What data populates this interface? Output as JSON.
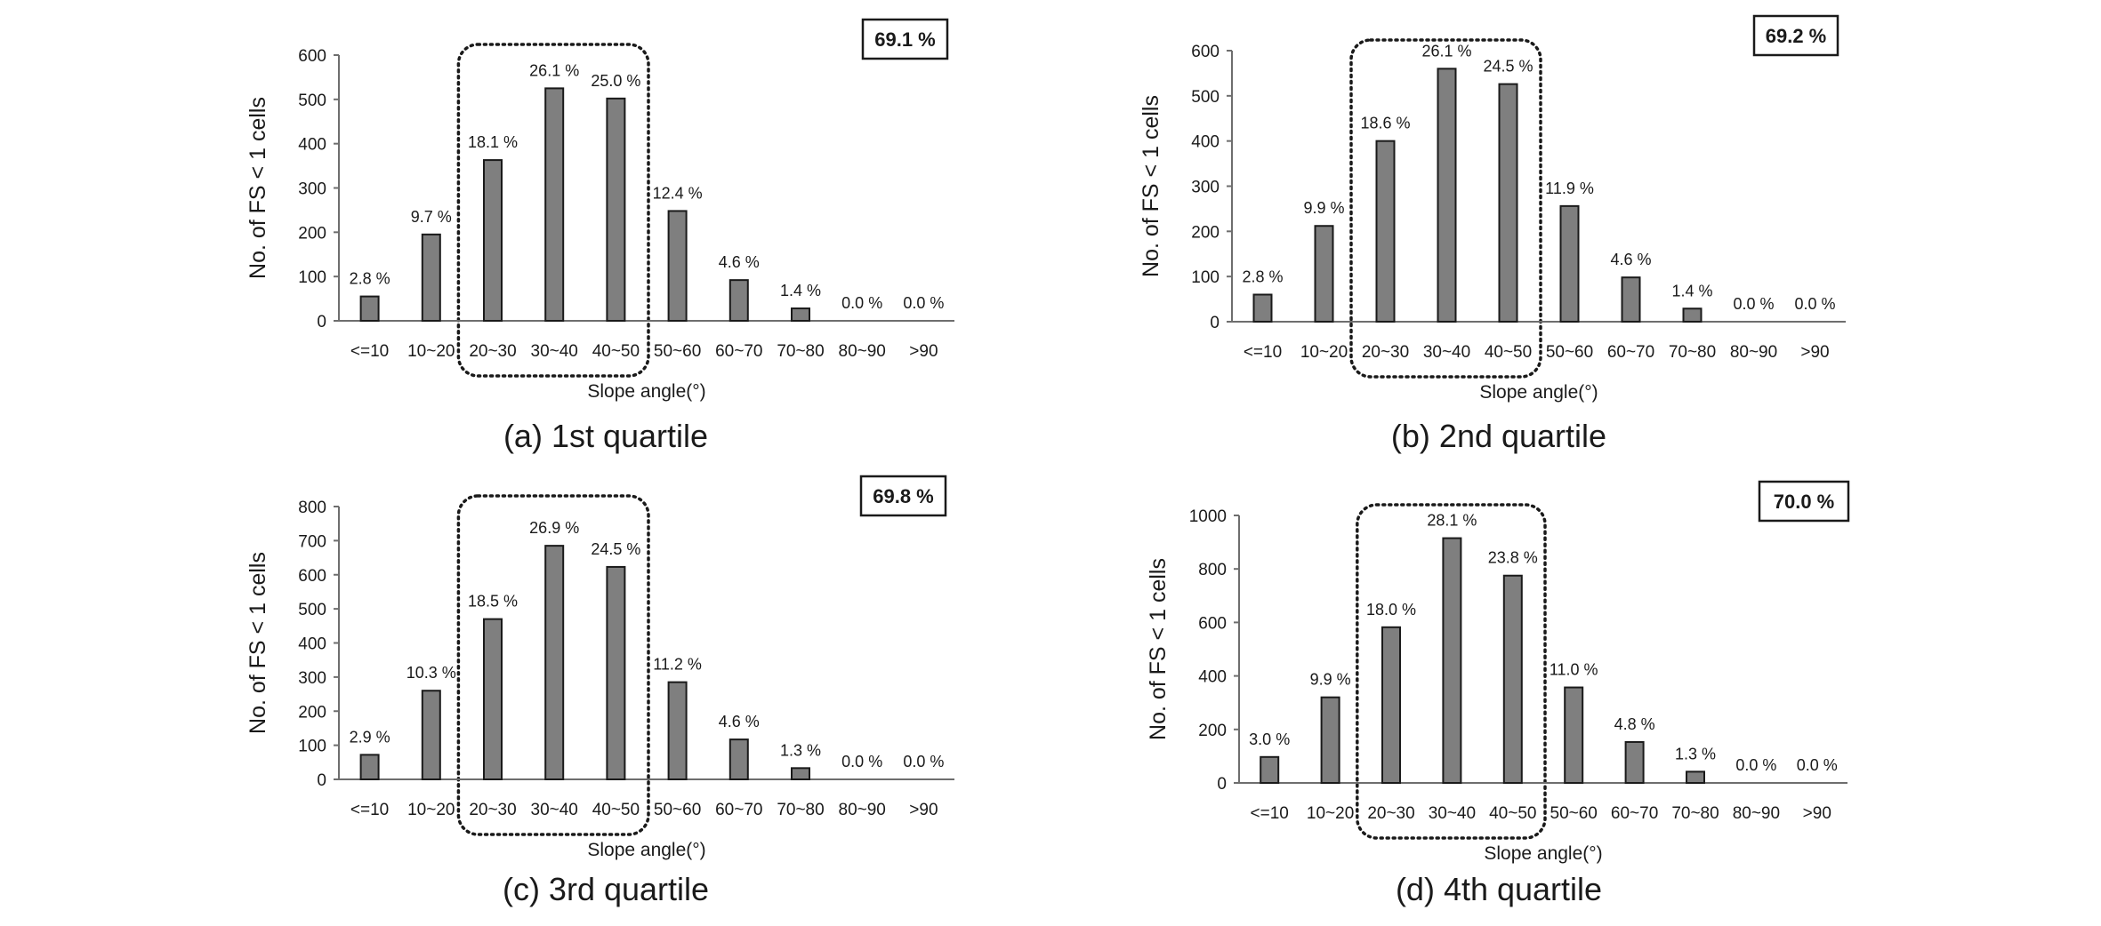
{
  "chart_data": [
    {
      "type": "bar",
      "caption": "(a) 1st quartile",
      "total_label": "69.1 %",
      "ylabel": "No. of FS  <  1 cells",
      "xlabel": "Slope angle(°)",
      "ylim": [
        0,
        600
      ],
      "yticks": [
        0,
        100,
        200,
        300,
        400,
        500,
        600
      ],
      "categories": [
        "<=10",
        "10~20",
        "20~30",
        "30~40",
        "40~50",
        "50~60",
        "60~70",
        "70~80",
        "80~90",
        ">90"
      ],
      "values": [
        55,
        195,
        363,
        525,
        502,
        248,
        92,
        28,
        0,
        0
      ],
      "labels": [
        "2.8 %",
        "9.7 %",
        "18.1 %",
        "26.1 %",
        "25.0 %",
        "12.4 %",
        "4.6 %",
        "1.4 %",
        "0.0 %",
        "0.0 %"
      ],
      "highlight_categories": [
        "20~30",
        "30~40",
        "40~50"
      ]
    },
    {
      "type": "bar",
      "caption": "(b) 2nd quartile",
      "total_label": "69.2 %",
      "ylabel": "No. of FS  <  1 cells",
      "xlabel": "Slope angle(°)",
      "ylim": [
        0,
        600
      ],
      "yticks": [
        0,
        100,
        200,
        300,
        400,
        500,
        600
      ],
      "categories": [
        "<=10",
        "10~20",
        "20~30",
        "30~40",
        "40~50",
        "50~60",
        "60~70",
        "70~80",
        "80~90",
        ">90"
      ],
      "values": [
        60,
        212,
        400,
        560,
        526,
        256,
        98,
        29,
        0,
        0
      ],
      "labels": [
        "2.8 %",
        "9.9 %",
        "18.6 %",
        "26.1 %",
        "24.5 %",
        "11.9 %",
        "4.6 %",
        "1.4 %",
        "0.0 %",
        "0.0 %"
      ],
      "highlight_categories": [
        "20~30",
        "30~40",
        "40~50"
      ]
    },
    {
      "type": "bar",
      "caption": "(c) 3rd quartile",
      "total_label": "69.8 %",
      "ylabel": "No. of FS  <  1 cells",
      "xlabel": "Slope angle(°)",
      "ylim": [
        0,
        800
      ],
      "yticks": [
        0,
        100,
        200,
        300,
        400,
        500,
        600,
        700,
        800
      ],
      "categories": [
        "<=10",
        "10~20",
        "20~30",
        "30~40",
        "40~50",
        "50~60",
        "60~70",
        "70~80",
        "80~90",
        ">90"
      ],
      "values": [
        72,
        260,
        470,
        685,
        623,
        285,
        117,
        33,
        0,
        0
      ],
      "labels": [
        "2.9 %",
        "10.3 %",
        "18.5 %",
        "26.9 %",
        "24.5 %",
        "11.2 %",
        "4.6 %",
        "1.3 %",
        "0.0 %",
        "0.0 %"
      ],
      "highlight_categories": [
        "20~30",
        "30~40",
        "40~50"
      ]
    },
    {
      "type": "bar",
      "caption": "(d) 4th quartile",
      "total_label": "70.0 %",
      "ylabel": "No. of FS  <  1 cells",
      "xlabel": "Slope angle(°)",
      "ylim": [
        0,
        1000
      ],
      "yticks": [
        0,
        200,
        400,
        600,
        800,
        1000
      ],
      "categories": [
        "<=10",
        "10~20",
        "20~30",
        "30~40",
        "40~50",
        "50~60",
        "60~70",
        "70~80",
        "80~90",
        ">90"
      ],
      "values": [
        97,
        320,
        582,
        915,
        775,
        357,
        153,
        42,
        0,
        0
      ],
      "labels": [
        "3.0 %",
        "9.9 %",
        "18.0 %",
        "28.1 %",
        "23.8 %",
        "11.0 %",
        "4.8 %",
        "1.3 %",
        "0.0 %",
        "0.0 %"
      ],
      "highlight_categories": [
        "20~30",
        "30~40",
        "40~50"
      ]
    }
  ]
}
